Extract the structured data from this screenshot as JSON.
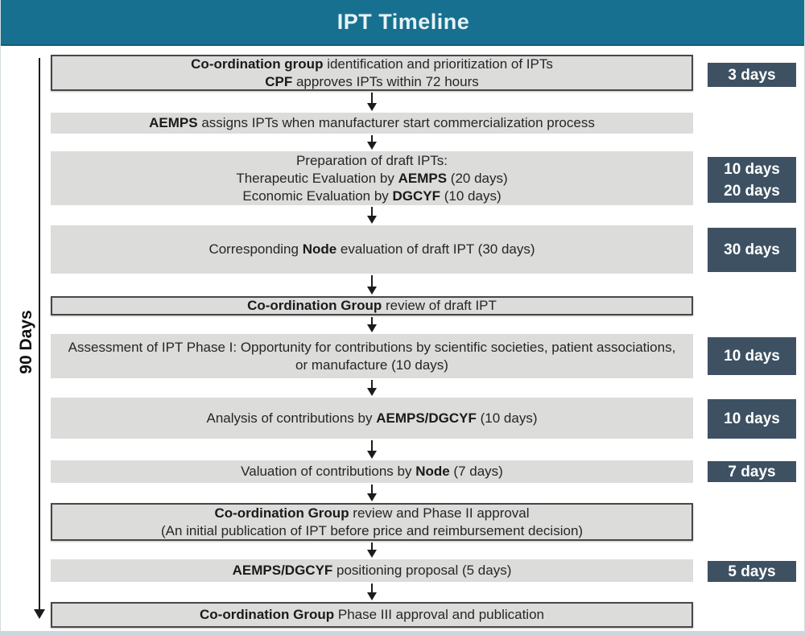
{
  "header": {
    "title": "IPT Timeline"
  },
  "timeline_label": "90 Days",
  "colors": {
    "header_bg": "#17708f",
    "box_fill": "#dcdcda",
    "box_border": "#474747",
    "day_bg": "#3d5162",
    "day_text": "#ffffff"
  },
  "steps": [
    {
      "bordered": true,
      "duration": [
        "3 days"
      ],
      "lines": [
        [
          {
            "text": "Co-ordination group",
            "bold": true
          },
          {
            "text": " identification and prioritization of IPTs"
          }
        ],
        [
          {
            "text": "CPF",
            "bold": true
          },
          {
            "text": " approves IPTs within 72 hours"
          }
        ]
      ]
    },
    {
      "bordered": false,
      "duration": null,
      "lines": [
        [
          {
            "text": "AEMPS",
            "bold": true
          },
          {
            "text": " assigns IPTs when manufacturer start commercialization process"
          }
        ]
      ]
    },
    {
      "bordered": false,
      "duration": [
        "10 days",
        "20 days"
      ],
      "lines": [
        [
          {
            "text": "Preparation of draft IPTs:"
          }
        ],
        [
          {
            "text": "Therapeutic Evaluation by "
          },
          {
            "text": "AEMPS",
            "bold": true
          },
          {
            "text": " (20 days)"
          }
        ],
        [
          {
            "text": "Economic Evaluation by "
          },
          {
            "text": "DGCYF",
            "bold": true
          },
          {
            "text": " (10 days)"
          }
        ]
      ]
    },
    {
      "bordered": false,
      "duration": [
        "30 days"
      ],
      "lines": [
        [
          {
            "text": "Corresponding "
          },
          {
            "text": "Node",
            "bold": true
          },
          {
            "text": " evaluation of draft IPT (30 days)"
          }
        ]
      ]
    },
    {
      "bordered": true,
      "duration": null,
      "lines": [
        [
          {
            "text": "Co-ordination Group",
            "bold": true
          },
          {
            "text": " review of draft IPT"
          }
        ]
      ]
    },
    {
      "bordered": false,
      "duration": [
        "10 days"
      ],
      "lines": [
        [
          {
            "text": "Assessment of IPT Phase I: Opportunity for contributions by scientific societies, patient associations, or manufacture (10 days)"
          }
        ]
      ]
    },
    {
      "bordered": false,
      "duration": [
        "10 days"
      ],
      "lines": [
        [
          {
            "text": "Analysis of contributions by "
          },
          {
            "text": "AEMPS/DGCYF",
            "bold": true
          },
          {
            "text": " (10 days)"
          }
        ]
      ]
    },
    {
      "bordered": false,
      "duration": [
        "7 days"
      ],
      "lines": [
        [
          {
            "text": "Valuation of contributions by "
          },
          {
            "text": "Node",
            "bold": true
          },
          {
            "text": " (7 days)"
          }
        ]
      ]
    },
    {
      "bordered": true,
      "duration": null,
      "lines": [
        [
          {
            "text": "Co-ordination Group",
            "bold": true
          },
          {
            "text": " review and Phase II approval"
          }
        ],
        [
          {
            "text": "(An initial publication of IPT before price and reimbursement decision)"
          }
        ]
      ]
    },
    {
      "bordered": false,
      "duration": [
        "5 days"
      ],
      "lines": [
        [
          {
            "text": "AEMPS/DGCYF",
            "bold": true
          },
          {
            "text": " positioning proposal (5 days)"
          }
        ]
      ]
    },
    {
      "bordered": true,
      "duration": null,
      "lines": [
        [
          {
            "text": "Co-ordination Group",
            "bold": true
          },
          {
            "text": " Phase III approval and publication"
          }
        ]
      ]
    }
  ]
}
